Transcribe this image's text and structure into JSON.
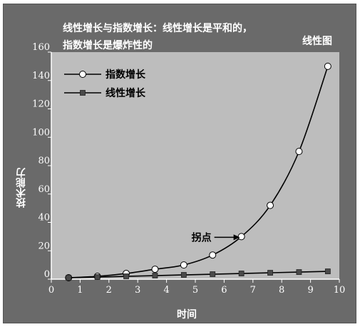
{
  "header": {
    "title_line1": "线性增长与指数增长：线性增长是平和的，",
    "title_line2": "指数增长是爆炸性的",
    "chart_tag": "线性图"
  },
  "chart_data": {
    "type": "line",
    "xlabel": "时间",
    "ylabel": "技术能力",
    "xlim": [
      0,
      10
    ],
    "ylim": [
      0,
      160
    ],
    "x_ticks": [
      "0",
      "1",
      "2",
      "3",
      "4",
      "5",
      "6",
      "7",
      "8",
      "9",
      "10"
    ],
    "y_ticks": [
      "0",
      "20",
      "40",
      "60",
      "80",
      "100",
      "120",
      "140",
      "160"
    ],
    "grid": false,
    "legend_position": "top-left",
    "series": [
      {
        "name": "指数增长",
        "marker": "circle",
        "x": [
          0.6,
          1.6,
          2.6,
          3.6,
          4.6,
          5.6,
          6.6,
          7.6,
          8.6,
          9.6
        ],
        "values": [
          1,
          2,
          4,
          7,
          10,
          17,
          30,
          52,
          90,
          150
        ]
      },
      {
        "name": "线性增长",
        "marker": "square",
        "x": [
          0.6,
          1.6,
          2.6,
          3.6,
          4.6,
          5.6,
          6.6,
          7.6,
          8.6,
          9.6
        ],
        "values": [
          1,
          1.5,
          2,
          2.5,
          3,
          3.5,
          4,
          4.5,
          5,
          5.5
        ]
      }
    ],
    "annotation": {
      "text": "拐点",
      "x": 6.6,
      "y": 30
    },
    "colors": {
      "plot_background": "#bdbdbd",
      "frame_background": "#6a6a6a",
      "line": "#000000",
      "text": "#ffffff"
    }
  }
}
